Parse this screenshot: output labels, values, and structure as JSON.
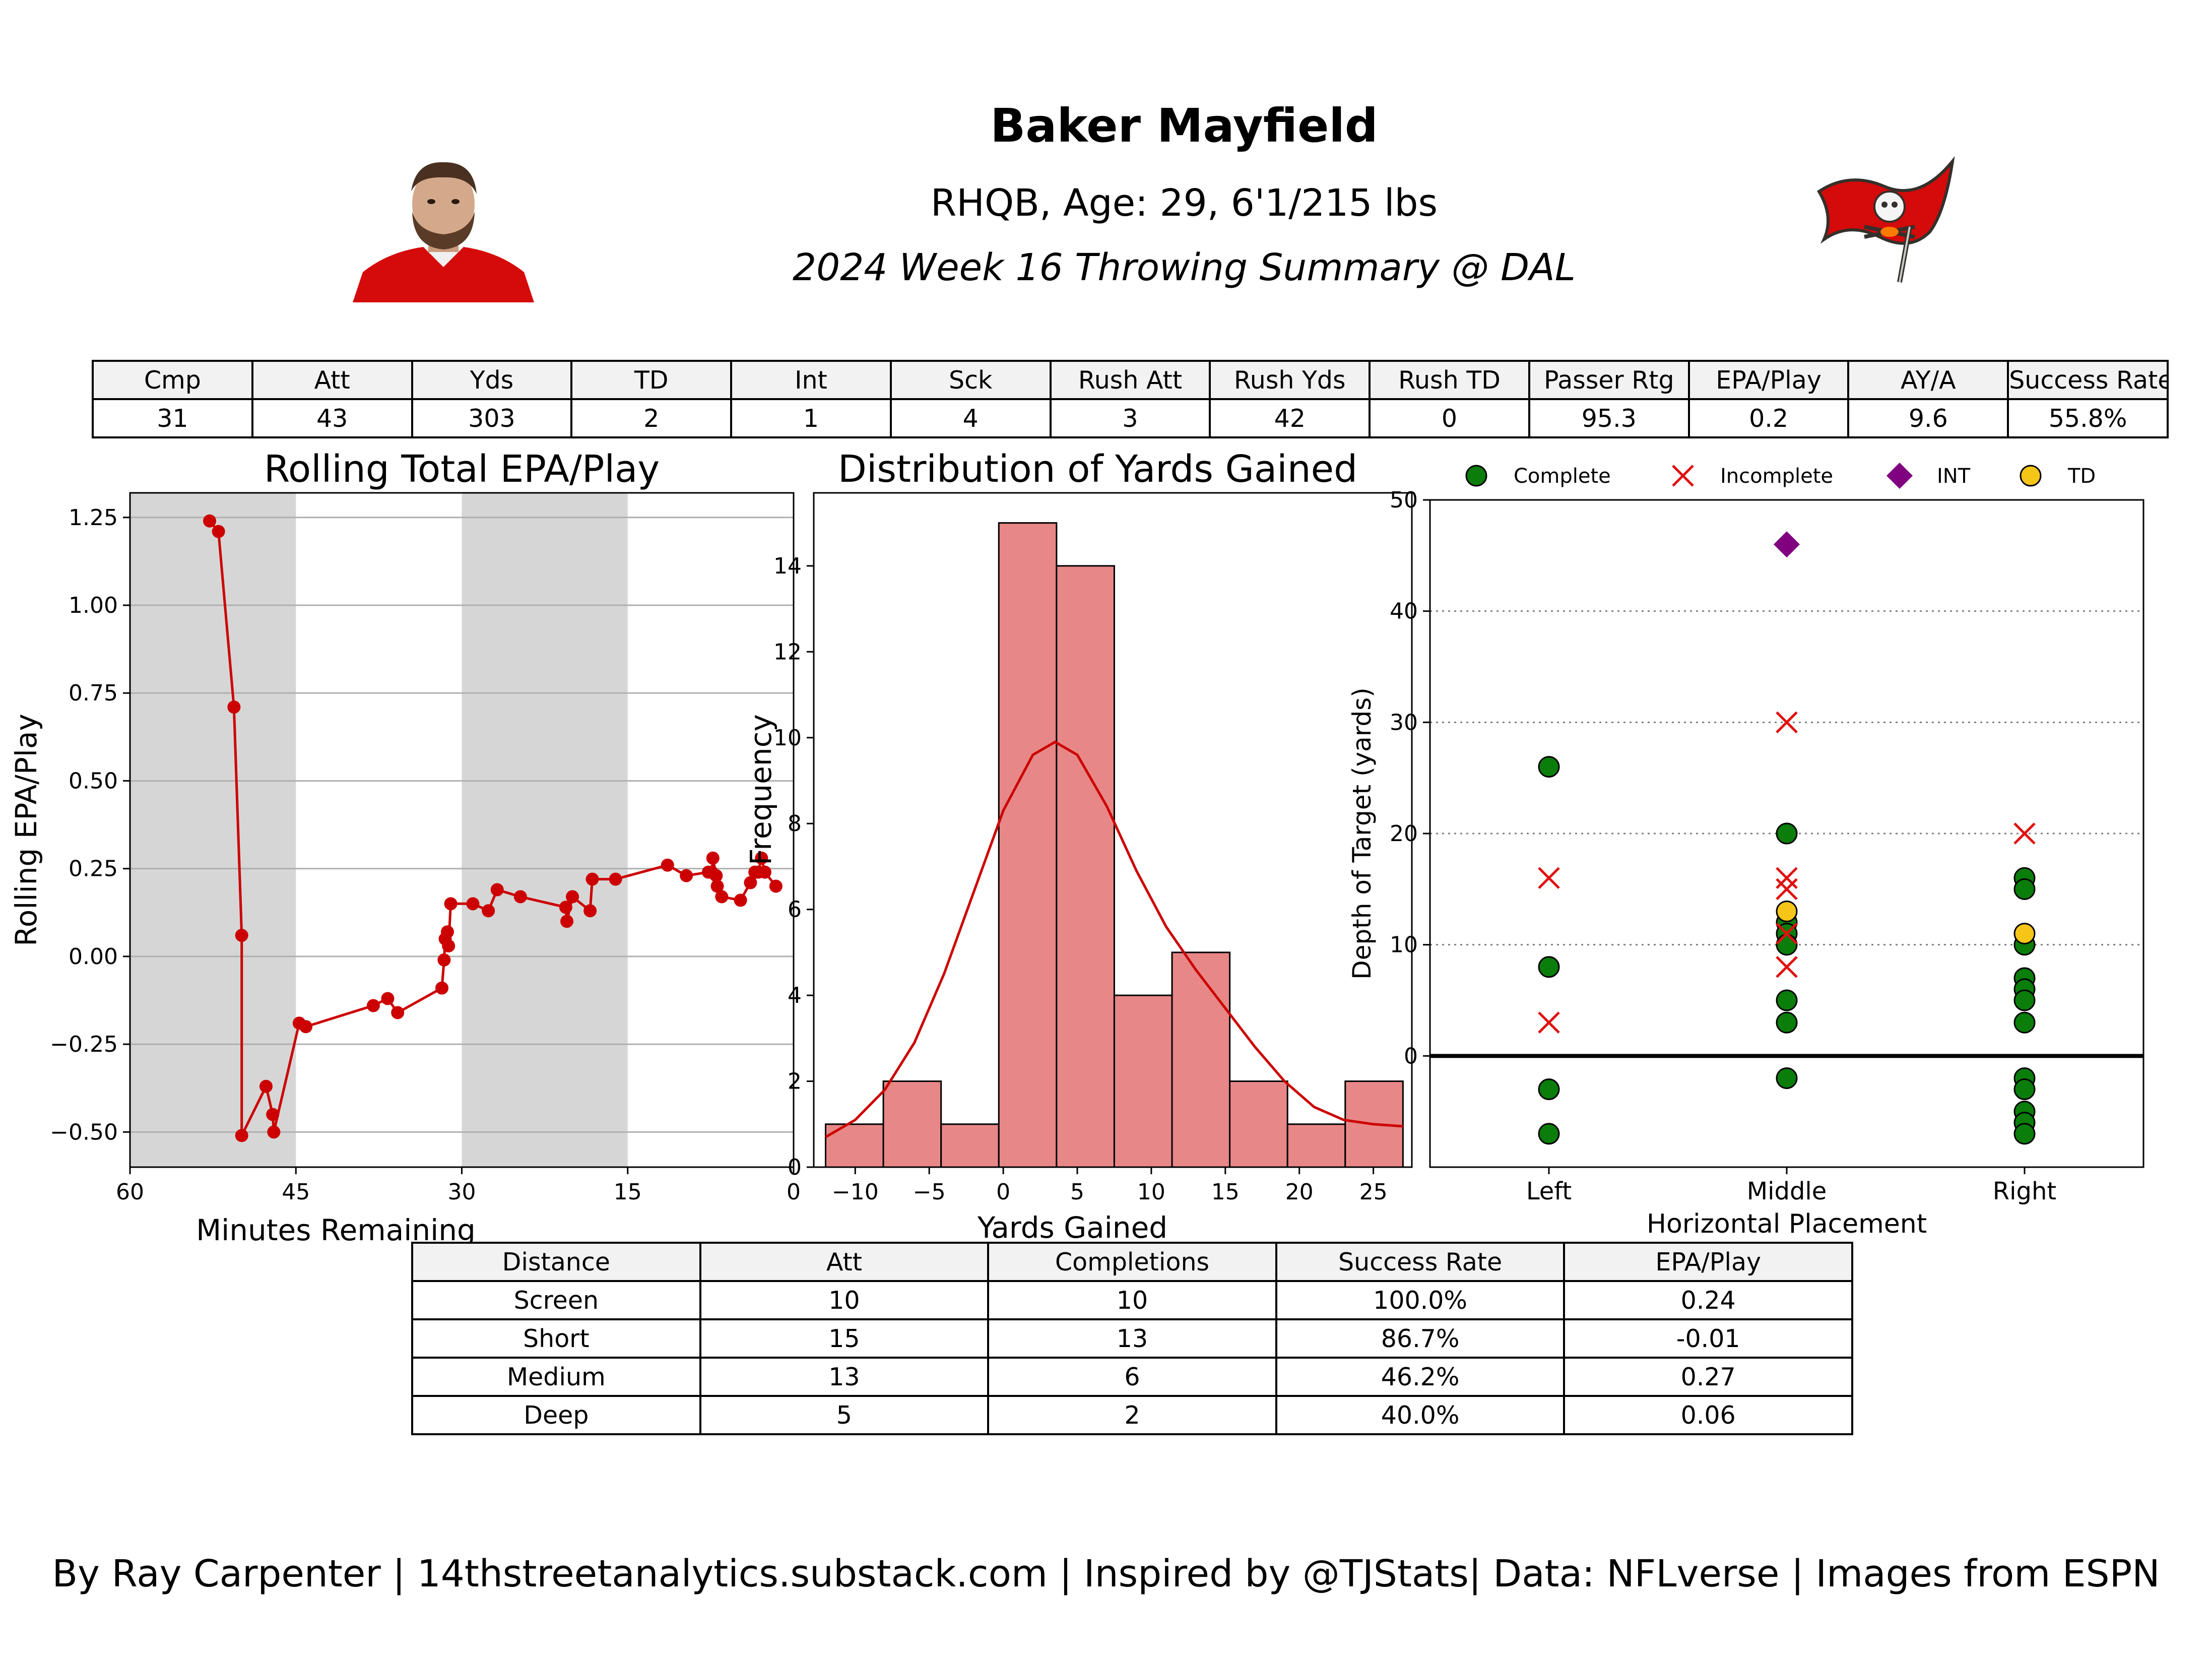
{
  "header": {
    "title": "Baker Mayfield",
    "subtitle": "RHQB, Age: 29, 6'1/215 lbs",
    "subtitle2": "2024 Week 16 Throwing Summary @ DAL"
  },
  "colors": {
    "line_red": "#cc0000",
    "bar_fill": "#e88787",
    "complete": "#0a7d0a",
    "incomplete": "#e01010",
    "int": "#800080",
    "td": "#f5c518",
    "quarter_shade": "#d6d6d6",
    "team_red": "#d50a0a",
    "team_pewter": "#34302b"
  },
  "summary_table": {
    "headers": [
      "Cmp",
      "Att",
      "Yds",
      "TD",
      "Int",
      "Sck",
      "Rush Att",
      "Rush Yds",
      "Rush TD",
      "Passer Rtg",
      "EPA/Play",
      "AY/A",
      "Success Rate"
    ],
    "row": [
      "31",
      "43",
      "303",
      "2",
      "1",
      "4",
      "3",
      "42",
      "0",
      "95.3",
      "0.2",
      "9.6",
      "55.8%"
    ]
  },
  "distance_table": {
    "headers": [
      "Distance",
      "Att",
      "Completions",
      "Success Rate",
      "EPA/Play"
    ],
    "rows": [
      [
        "Screen",
        "10",
        "10",
        "100.0%",
        "0.24"
      ],
      [
        "Short",
        "15",
        "13",
        "86.7%",
        "-0.01"
      ],
      [
        "Medium",
        "13",
        "6",
        "46.2%",
        "0.27"
      ],
      [
        "Deep",
        "5",
        "2",
        "40.0%",
        "0.06"
      ]
    ]
  },
  "footer": "By Ray Carpenter | 14thstreetanalytics.substack.com | Inspired by @TJStats| Data: NFLverse | Images from ESPN",
  "chart_data": [
    {
      "type": "line",
      "title": "Rolling Total EPA/Play",
      "xlabel": "Minutes Remaining",
      "ylabel": "Rolling EPA/Play",
      "xlim": [
        60,
        0
      ],
      "ylim": [
        -0.6,
        1.32
      ],
      "xticks": [
        60,
        45,
        30,
        15,
        0
      ],
      "xtick_labels": [
        "60",
        "45",
        "30",
        "15",
        "0"
      ],
      "yticks": [
        -0.5,
        -0.25,
        0.0,
        0.25,
        0.5,
        0.75,
        1.0,
        1.25
      ],
      "ytick_labels": [
        "−0.50",
        "−0.25",
        "0.00",
        "0.25",
        "0.50",
        "0.75",
        "1.00",
        "1.25"
      ],
      "shaded_quarters": [
        [
          60,
          45
        ],
        [
          30,
          15
        ]
      ],
      "grid": "horizontal",
      "x": [
        52.8,
        52.0,
        50.6,
        49.9,
        49.9,
        47.7,
        47.1,
        47.0,
        44.7,
        44.1,
        38.0,
        36.7,
        35.8,
        31.8,
        31.6,
        31.5,
        31.3,
        31.2,
        31.0,
        29.0,
        27.6,
        26.8,
        24.7,
        20.6,
        20.5,
        20.0,
        18.4,
        18.2,
        16.1,
        11.4,
        9.7,
        7.7,
        7.4,
        7.3,
        7.0,
        6.9,
        6.5,
        4.8,
        3.9,
        3.5,
        3.2,
        2.9,
        2.6,
        1.6
      ],
      "y": [
        1.24,
        1.21,
        0.71,
        0.06,
        -0.51,
        -0.37,
        -0.45,
        -0.5,
        -0.19,
        -0.2,
        -0.14,
        -0.12,
        -0.16,
        -0.09,
        -0.01,
        0.05,
        0.07,
        0.03,
        0.15,
        0.15,
        0.13,
        0.19,
        0.17,
        0.14,
        0.1,
        0.17,
        0.13,
        0.22,
        0.22,
        0.26,
        0.23,
        0.24,
        0.24,
        0.28,
        0.23,
        0.2,
        0.17,
        0.16,
        0.21,
        0.24,
        0.24,
        0.28,
        0.24,
        0.2
      ]
    },
    {
      "type": "bar",
      "title": "Distribution of Yards Gained",
      "xlabel": "Yards Gained",
      "ylabel": "Frequency",
      "xlim": [
        -12.8,
        27.6
      ],
      "ylim": [
        0,
        15.7
      ],
      "xticks": [
        -10,
        -5,
        0,
        5,
        10,
        15,
        20,
        25
      ],
      "xtick_labels": [
        "−10",
        "−5",
        "0",
        "5",
        "10",
        "15",
        "20",
        "25"
      ],
      "yticks": [
        0,
        2,
        4,
        6,
        8,
        10,
        12,
        14
      ],
      "ytick_labels": [
        "0",
        "2",
        "4",
        "6",
        "8",
        "10",
        "12",
        "14"
      ],
      "bin_edges": [
        -12,
        -8.1,
        -4.2,
        -0.3,
        3.6,
        7.5,
        11.4,
        15.3,
        19.2,
        23.1,
        27
      ],
      "values": [
        1,
        2,
        1,
        15,
        14,
        4,
        5,
        2,
        1,
        2
      ],
      "kde_x": [
        -12,
        -10,
        -8,
        -6,
        -4,
        -2,
        0,
        2,
        3.5,
        5,
        7,
        9,
        11,
        13,
        15,
        17,
        19,
        21,
        23,
        25,
        27
      ],
      "kde_y": [
        0.7,
        1.1,
        1.8,
        2.9,
        4.5,
        6.4,
        8.3,
        9.6,
        9.9,
        9.6,
        8.4,
        6.9,
        5.6,
        4.6,
        3.7,
        2.8,
        2.0,
        1.4,
        1.1,
        1.0,
        0.95
      ]
    },
    {
      "type": "scatter",
      "xlabel": "Horizontal Placement",
      "ylabel": "Depth of Target (yards)",
      "categories": [
        "Left",
        "Middle",
        "Right"
      ],
      "ylim": [
        -10,
        50
      ],
      "yticks": [
        0,
        10,
        20,
        30,
        40,
        50
      ],
      "ytick_labels": [
        "0",
        "10",
        "20",
        "30",
        "40",
        "50"
      ],
      "grid": "horizontal dotted",
      "legend": [
        "Complete",
        "Incomplete",
        "INT",
        "TD"
      ],
      "legend_position": "top",
      "series": [
        {
          "name": "Complete",
          "points": [
            [
              "Left",
              26
            ],
            [
              "Left",
              8
            ],
            [
              "Left",
              -3
            ],
            [
              "Left",
              -7
            ],
            [
              "Middle",
              20
            ],
            [
              "Middle",
              12
            ],
            [
              "Middle",
              11
            ],
            [
              "Middle",
              10
            ],
            [
              "Middle",
              5
            ],
            [
              "Middle",
              3
            ],
            [
              "Middle",
              -2
            ],
            [
              "Right",
              16
            ],
            [
              "Right",
              15
            ],
            [
              "Right",
              10
            ],
            [
              "Right",
              7
            ],
            [
              "Right",
              6
            ],
            [
              "Right",
              5
            ],
            [
              "Right",
              3
            ],
            [
              "Right",
              -2
            ],
            [
              "Right",
              -3
            ],
            [
              "Right",
              -5
            ],
            [
              "Right",
              -6
            ],
            [
              "Right",
              -7
            ]
          ]
        },
        {
          "name": "Incomplete",
          "points": [
            [
              "Left",
              16
            ],
            [
              "Left",
              3
            ],
            [
              "Middle",
              30
            ],
            [
              "Middle",
              16
            ],
            [
              "Middle",
              15
            ],
            [
              "Middle",
              11
            ],
            [
              "Middle",
              8
            ],
            [
              "Right",
              20
            ]
          ]
        },
        {
          "name": "INT",
          "points": [
            [
              "Middle",
              46
            ]
          ]
        },
        {
          "name": "TD",
          "points": [
            [
              "Middle",
              13
            ],
            [
              "Right",
              11
            ]
          ]
        }
      ]
    }
  ]
}
